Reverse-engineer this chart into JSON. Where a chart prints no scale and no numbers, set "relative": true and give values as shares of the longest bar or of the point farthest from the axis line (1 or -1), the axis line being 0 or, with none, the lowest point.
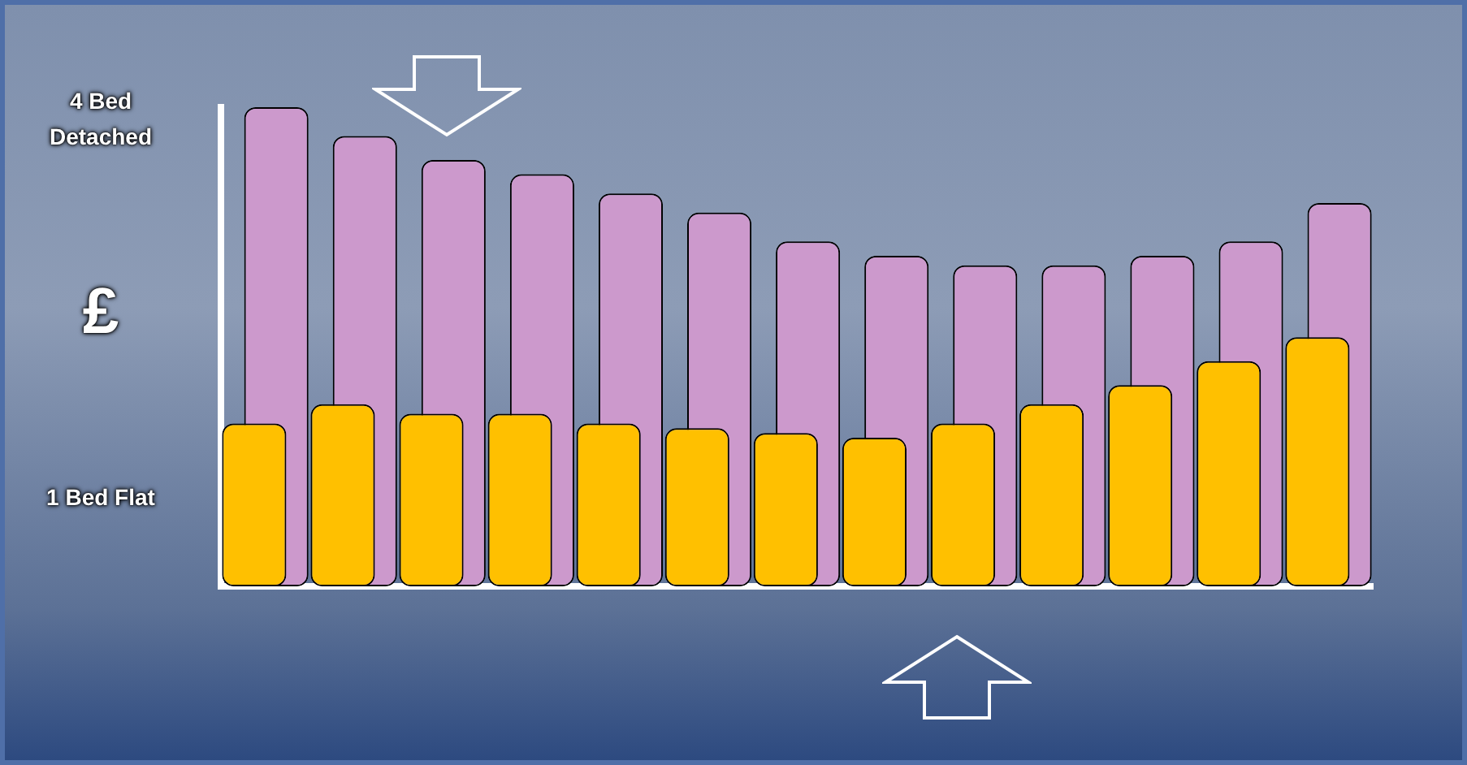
{
  "chart_data": {
    "type": "bar",
    "ylabel": "£",
    "annotations": [
      "4 Bed Detached",
      "1 Bed Flat"
    ],
    "relative": true,
    "tick_labels": false,
    "categories": [
      null,
      null,
      null,
      null,
      null,
      null,
      null,
      null,
      null,
      null,
      null,
      null,
      null
    ],
    "series": [
      {
        "color": "#ffc000",
        "values": [
          0.34,
          0.38,
          0.36,
          0.36,
          0.34,
          0.33,
          0.32,
          0.31,
          0.34,
          0.38,
          0.42,
          0.47,
          0.52
        ]
      },
      {
        "color": "#cc99cc",
        "values": [
          1,
          0.94,
          0.89,
          0.86,
          0.82,
          0.78,
          0.72,
          0.69,
          0.67,
          0.67,
          0.69,
          0.72,
          0.8
        ]
      }
    ]
  }
}
